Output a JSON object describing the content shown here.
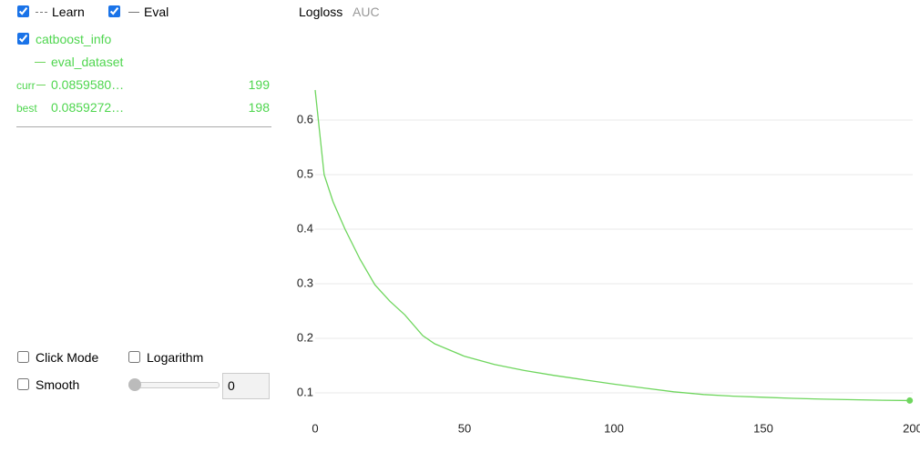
{
  "legend": {
    "learn": "Learn",
    "eval": "Eval"
  },
  "run": {
    "name": "catboost_info",
    "dataset": "eval_dataset",
    "curr_label": "curr",
    "curr_value": "0.0859580…",
    "curr_iter": 199,
    "best_label": "best",
    "best_value": "0.0859272…",
    "best_iter": 198
  },
  "options": {
    "click_mode": "Click Mode",
    "logarithm": "Logarithm",
    "smooth": "Smooth",
    "smooth_value": 0
  },
  "tabs": [
    "Logloss",
    "AUC"
  ],
  "chart_data": {
    "type": "line",
    "x": [
      0,
      3,
      6,
      10,
      15,
      20,
      25,
      30,
      36,
      40,
      50,
      60,
      70,
      80,
      90,
      100,
      110,
      120,
      130,
      140,
      150,
      160,
      170,
      180,
      190,
      199
    ],
    "series": [
      {
        "name": "eval_dataset",
        "color": "#6fd65e",
        "values": [
          0.655,
          0.5,
          0.45,
          0.4,
          0.345,
          0.298,
          0.268,
          0.243,
          0.205,
          0.19,
          0.167,
          0.152,
          0.141,
          0.132,
          0.124,
          0.116,
          0.109,
          0.102,
          0.097,
          0.094,
          0.092,
          0.09,
          0.0885,
          0.0875,
          0.0865,
          0.08596
        ]
      }
    ],
    "xlim": [
      0,
      200
    ],
    "ylim": [
      0.06,
      0.67
    ],
    "xticks": [
      0,
      50,
      100,
      150,
      200
    ],
    "yticks": [
      0.1,
      0.2,
      0.3,
      0.4,
      0.5,
      0.6
    ],
    "grid": true
  }
}
